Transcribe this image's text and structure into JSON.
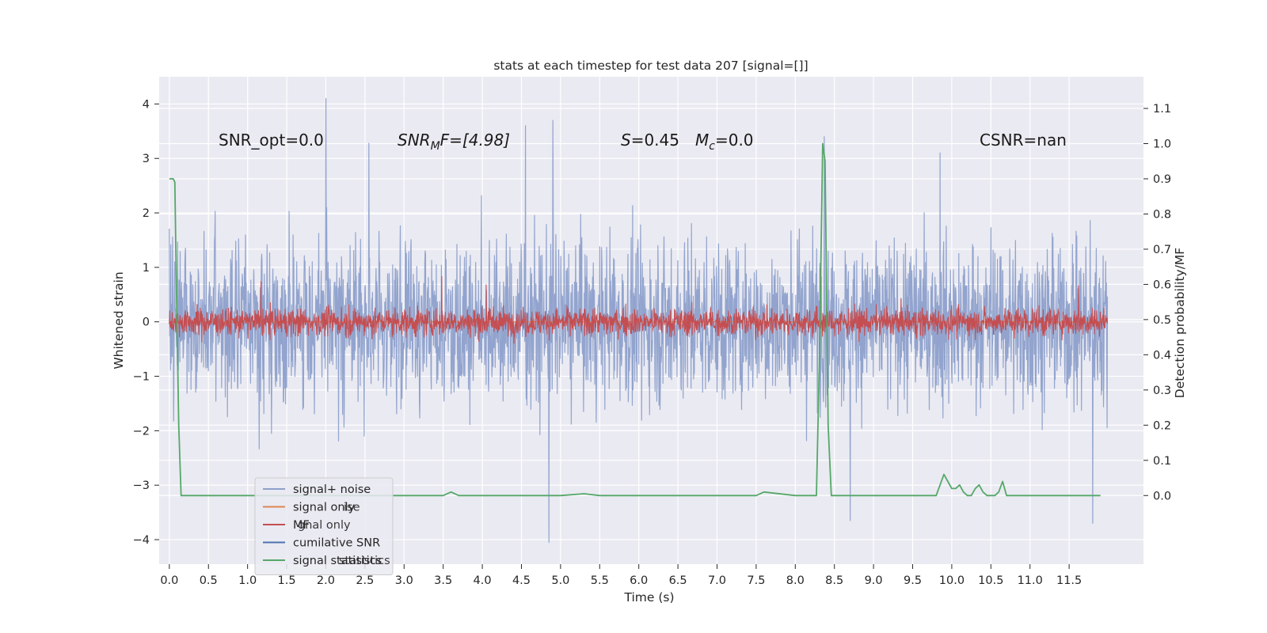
{
  "chart_data": {
    "type": "line",
    "title": "stats at each timestep for test data 207 [signal=[]]",
    "xlabel": "Time (s)",
    "ylabel_left": "Whitened strain",
    "ylabel_right": "Detection probability/MF",
    "xlim": [
      -0.13,
      12.45
    ],
    "ylim_left": [
      -4.45,
      4.5
    ],
    "ylim_right": [
      -0.195,
      1.19
    ],
    "x_ticks": [
      "0.0",
      "0.5",
      "1.0",
      "1.5",
      "2.0",
      "2.5",
      "3.0",
      "3.5",
      "4.0",
      "4.5",
      "5.0",
      "5.5",
      "6.0",
      "6.5",
      "7.0",
      "7.5",
      "8.0",
      "8.5",
      "9.0",
      "9.5",
      "10.0",
      "10.5",
      "11.0",
      "11.5"
    ],
    "y_ticks_left": [
      "−4",
      "−3",
      "−2",
      "−1",
      "0",
      "1",
      "2",
      "3",
      "4"
    ],
    "y_ticks_right": [
      "0.0",
      "0.1",
      "0.2",
      "0.3",
      "0.4",
      "0.5",
      "0.6",
      "0.7",
      "0.8",
      "0.9",
      "1.0",
      "1.1"
    ],
    "grid": true,
    "legend_placement": "lower-left",
    "annotations": {
      "snr_opt": "SNR_opt=0.0",
      "snr_mf_main": "SNR",
      "snr_mf_sub": "M",
      "snr_mf_rest": "F=[4.98]",
      "s_italic": "S",
      "s_rest": "=0.45",
      "mc_italic": "M",
      "mc_sub": "c",
      "mc_rest": "=0.0",
      "csnr": "CSNR=nan"
    },
    "legend": [
      {
        "label": "signal+ noise",
        "color": "#8da0cb",
        "ghost": ""
      },
      {
        "label": "signal only",
        "color": "#dd8452",
        "ghost": "ise"
      },
      {
        "label": "MF",
        "color": "#c44e52",
        "ghost": "gnal only"
      },
      {
        "label": "cumilative SNR",
        "color": "#4c72b0",
        "ghost": ""
      },
      {
        "label": "signal statistics",
        "color": "#55a868",
        "ghost": "statistics"
      }
    ],
    "series": [
      {
        "name": "signal+ noise",
        "axis": "left",
        "color": "#8da0cb",
        "kind": "noise",
        "x_range": [
          0.0,
          11.99
        ],
        "spread": 1.9,
        "extremes": [
          [
            2.0,
            4.1
          ],
          [
            4.85,
            -4.05
          ],
          [
            2.55,
            3.28
          ],
          [
            4.55,
            3.6
          ],
          [
            4.9,
            3.7
          ],
          [
            8.37,
            3.4
          ],
          [
            9.85,
            3.1
          ],
          [
            11.8,
            -3.7
          ],
          [
            8.7,
            -3.65
          ]
        ]
      },
      {
        "name": "signal only",
        "axis": "left",
        "color": "#dd8452",
        "kind": "flat",
        "x_range": [
          0.0,
          11.99
        ],
        "value": 0.0
      },
      {
        "name": "MF",
        "axis": "left",
        "color": "#c44e52",
        "kind": "noise",
        "x_range": [
          0.0,
          11.99
        ],
        "spread": 0.32,
        "extremes": [
          [
            3.48,
            0.83
          ],
          [
            1.17,
            0.74
          ],
          [
            4.05,
            0.68
          ],
          [
            8.32,
            0.98
          ],
          [
            11.62,
            0.66
          ]
        ]
      },
      {
        "name": "signal statistics",
        "axis": "right",
        "color": "#55a868",
        "kind": "line",
        "x": [
          0.0,
          0.05,
          0.07,
          0.09,
          0.12,
          0.15,
          0.5,
          1.0,
          1.5,
          2.0,
          2.5,
          3.0,
          3.5,
          3.6,
          3.7,
          4.0,
          4.5,
          5.0,
          5.3,
          5.5,
          6.0,
          6.5,
          7.0,
          7.5,
          7.6,
          8.0,
          8.27,
          8.31,
          8.35,
          8.38,
          8.42,
          8.46,
          8.5,
          9.0,
          9.5,
          9.8,
          9.9,
          9.95,
          10.0,
          10.05,
          10.1,
          10.15,
          10.2,
          10.25,
          10.3,
          10.35,
          10.4,
          10.45,
          10.5,
          10.55,
          10.6,
          10.65,
          10.7,
          10.75,
          10.8,
          11.0,
          11.5,
          11.8,
          11.9
        ],
        "y": [
          0.9,
          0.9,
          0.89,
          0.6,
          0.2,
          0.0,
          0.0,
          0.0,
          0.0,
          0.0,
          0.0,
          0.0,
          0.0,
          0.01,
          0.0,
          0.0,
          0.0,
          0.0,
          0.005,
          0.0,
          0.0,
          0.0,
          0.0,
          0.0,
          0.01,
          0.0,
          0.0,
          0.4,
          1.0,
          0.95,
          0.2,
          0.0,
          0.0,
          0.0,
          0.0,
          0.0,
          0.06,
          0.04,
          0.02,
          0.02,
          0.03,
          0.01,
          0.0,
          0.0,
          0.02,
          0.03,
          0.01,
          0.0,
          0.0,
          0.0,
          0.01,
          0.04,
          0.0,
          0.0,
          0.0,
          0.0,
          0.0,
          0.0,
          0.0
        ]
      }
    ]
  }
}
